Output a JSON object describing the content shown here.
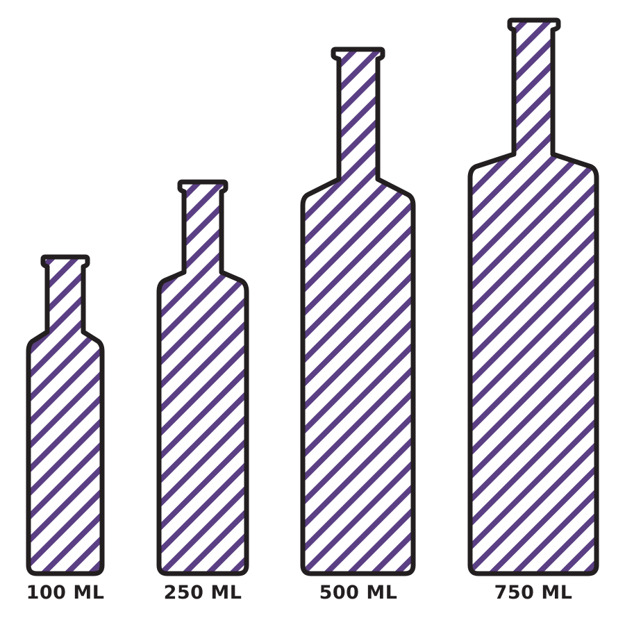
{
  "colors": {
    "stripe": "#5b3f84",
    "outline": "#231f20",
    "background": "#ffffff"
  },
  "bottles": [
    {
      "label": "100 ML"
    },
    {
      "label": "250 ML"
    },
    {
      "label": "500 ML"
    },
    {
      "label": "750 ML"
    }
  ]
}
